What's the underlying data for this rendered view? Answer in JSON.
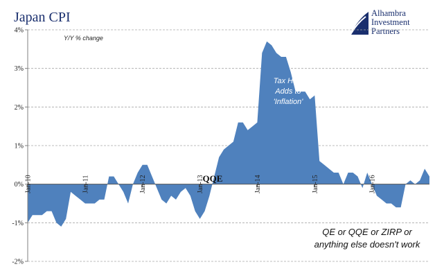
{
  "title": "Japan CPI",
  "brand": {
    "lines": [
      "Alhambra",
      "Investment",
      "Partners"
    ],
    "color": "#1a2f6e"
  },
  "colors": {
    "area": "#4f81bd",
    "grid": "#a6a6a6",
    "axis": "#7f7f7f",
    "text": "#222222"
  },
  "chart_data": {
    "type": "area",
    "title": "Japan CPI",
    "subtitle": "Y/Y % change",
    "xlabel": "",
    "ylabel": "",
    "ylim": [
      -2,
      4
    ],
    "y_ticks": [
      4,
      3,
      2,
      1,
      0,
      -1,
      -2
    ],
    "y_tick_labels": [
      "4%",
      "3%",
      "2%",
      "1%",
      "0%",
      "-1%",
      "-2%"
    ],
    "x_start": "Jan-10",
    "x_tick_labels": [
      "Jan-10",
      "Jan-11",
      "Jan-12",
      "Jan-13",
      "Jan-14",
      "Jan-15",
      "Jan-16"
    ],
    "x_tick_months": [
      0,
      12,
      24,
      36,
      48,
      60,
      72
    ],
    "x_max_month": 84,
    "grid": "horizontal dashed",
    "legend": "none",
    "series": [
      {
        "values": [
          -1.0,
          -0.8,
          -0.8,
          -0.8,
          -0.7,
          -0.7,
          -1.0,
          -1.1,
          -0.9,
          -0.2,
          -0.3,
          -0.4,
          -0.5,
          -0.5,
          -0.5,
          -0.4,
          -0.4,
          0.2,
          0.2,
          0.0,
          -0.2,
          -0.5,
          0.0,
          0.3,
          0.5,
          0.5,
          0.2,
          -0.1,
          -0.4,
          -0.5,
          -0.3,
          -0.4,
          -0.2,
          -0.1,
          -0.3,
          -0.7,
          -0.9,
          -0.7,
          -0.3,
          0.2,
          0.7,
          0.9,
          1.0,
          1.1,
          1.6,
          1.6,
          1.4,
          1.5,
          1.6,
          3.4,
          3.7,
          3.6,
          3.4,
          3.3,
          3.3,
          2.9,
          2.4,
          2.4,
          2.4,
          2.2,
          2.3,
          0.6,
          0.5,
          0.4,
          0.3,
          0.3,
          0.0,
          0.3,
          0.3,
          0.2,
          -0.1,
          0.3,
          0.0,
          -0.3,
          -0.4,
          -0.5,
          -0.5,
          -0.6,
          -0.6,
          0.0,
          0.1,
          0.0,
          0.1,
          0.4,
          0.2
        ]
      }
    ],
    "annotations": [
      {
        "id": "qqe",
        "text": "QQE"
      },
      {
        "id": "tax",
        "lines": [
          "Tax Hike",
          "Adds to",
          "'Inflation'"
        ]
      },
      {
        "id": "qe",
        "lines": [
          "QE or QQE or ZIRP or",
          "anything else doesn't work"
        ]
      }
    ]
  }
}
